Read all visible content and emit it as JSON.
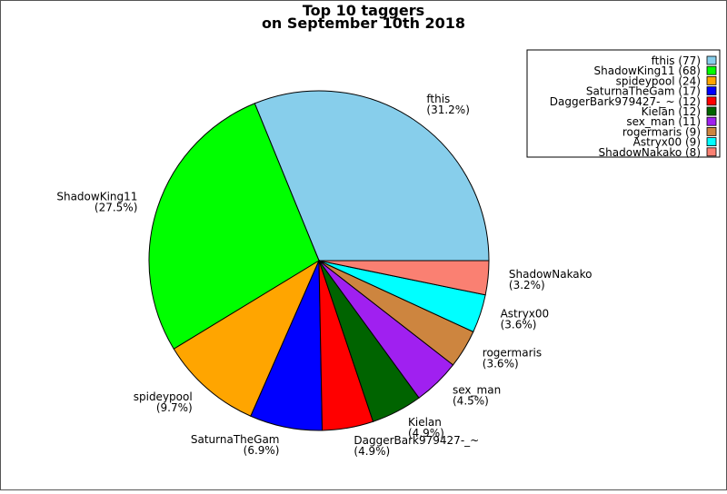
{
  "chart_data": {
    "type": "pie",
    "title": "Top 10 taggers",
    "subtitle": "on September 10th 2018",
    "slices": [
      {
        "name": "fthis",
        "value": 77,
        "percent": "31.2%",
        "legend": "fthis (77)",
        "color": "#87CEEB"
      },
      {
        "name": "ShadowKing11",
        "value": 68,
        "percent": "27.5%",
        "legend": "ShadowKing11 (68)",
        "color": "#00FF00"
      },
      {
        "name": "spideypool",
        "value": 24,
        "percent": "9.7%",
        "legend": "spideypool (24)",
        "color": "#FFA500"
      },
      {
        "name": "SaturnaTheGam",
        "value": 17,
        "percent": "6.9%",
        "legend": "SaturnaTheGam (17)",
        "color": "#0000FF"
      },
      {
        "name": "DaggerBark979427-_~",
        "value": 12,
        "percent": "4.9%",
        "legend": "DaggerBark979427-_~ (12)",
        "color": "#FF0000"
      },
      {
        "name": "Kielan",
        "value": 12,
        "percent": "4.9%",
        "legend": "Kielan (12)",
        "color": "#006400"
      },
      {
        "name": "sex_man",
        "value": 11,
        "percent": "4.5%",
        "legend": "sex_man (11)",
        "color": "#A020F0"
      },
      {
        "name": "rogermaris",
        "value": 9,
        "percent": "3.6%",
        "legend": "rogermaris (9)",
        "color": "#CD853F"
      },
      {
        "name": "Astryx00",
        "value": 9,
        "percent": "3.6%",
        "legend": "Astryx00 (9)",
        "color": "#00FFFF"
      },
      {
        "name": "ShadowNakako",
        "value": 8,
        "percent": "3.2%",
        "legend": "ShadowNakako (8)",
        "color": "#FA8072"
      }
    ],
    "legend_placement": "top-right"
  }
}
